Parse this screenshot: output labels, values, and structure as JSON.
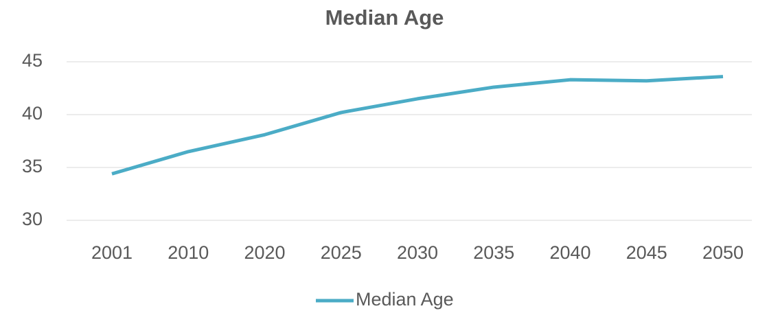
{
  "chart_data": {
    "type": "line",
    "title": "Median Age",
    "categories": [
      "2001",
      "2010",
      "2020",
      "2025",
      "2030",
      "2035",
      "2040",
      "2045",
      "2050"
    ],
    "series": [
      {
        "name": "Median Age",
        "color": "#4bacc6",
        "values": [
          34.4,
          36.5,
          38.1,
          40.2,
          41.5,
          42.6,
          43.3,
          43.2,
          43.6
        ]
      }
    ],
    "ylim": [
      30,
      45
    ],
    "yticks": [
      30,
      35,
      40,
      45
    ],
    "grid": true,
    "legend": "bottom"
  }
}
